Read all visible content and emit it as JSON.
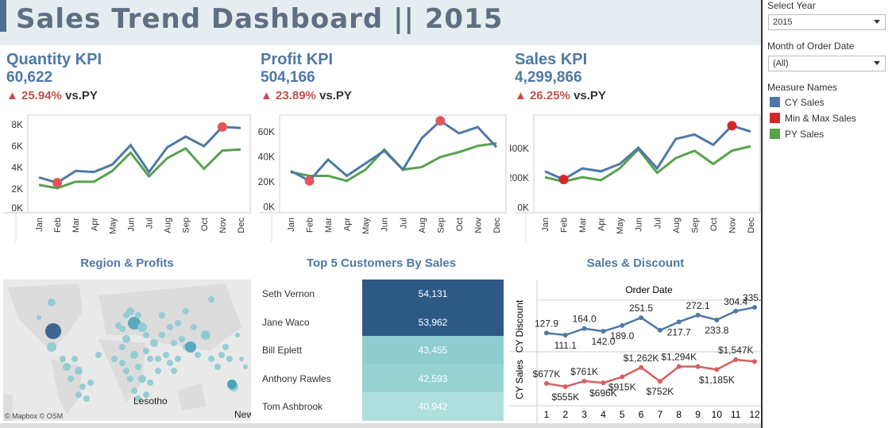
{
  "header": {
    "title": "Sales Trend Dashboard || 2015"
  },
  "kpis": [
    {
      "title": "Quantity KPI",
      "value": "60,622",
      "change": "▲ 25.94%",
      "vs": "vs.PY",
      "chart": {
        "type": "line",
        "categories": [
          "Jan",
          "Feb",
          "Mar",
          "Apr",
          "May",
          "Jun",
          "Jul",
          "Aug",
          "Sep",
          "Oct",
          "Nov",
          "Dec"
        ],
        "yticks": [
          "0K",
          "2K",
          "4K",
          "6K",
          "8K"
        ],
        "ytick_values": [
          0,
          2000,
          4000,
          6000,
          8000
        ],
        "ylim": [
          0,
          8500
        ],
        "series": [
          {
            "name": "CY Sales",
            "values": [
              3000,
              2500,
              3600,
              3500,
              4200,
              6000,
              3500,
              5800,
              6800,
              5900,
              7700,
              7600
            ]
          },
          {
            "name": "PY Sales",
            "values": [
              2300,
              2000,
              2600,
              2600,
              3600,
              5300,
              3100,
              4800,
              5700,
              3800,
              5500,
              5600
            ]
          }
        ],
        "min_max": [
          {
            "month": "Feb",
            "value": 2500
          },
          {
            "month": "Nov",
            "value": 7700
          }
        ]
      }
    },
    {
      "title": "Profit KPI",
      "value": "504,166",
      "change": "▲ 23.89%",
      "vs": "vs.PY",
      "chart": {
        "type": "line",
        "categories": [
          "Jan",
          "Feb",
          "Mar",
          "Apr",
          "May",
          "Jun",
          "Jul",
          "Aug",
          "Sep",
          "Oct",
          "Nov",
          "Dec"
        ],
        "yticks": [
          "0K",
          "20K",
          "40K",
          "60K"
        ],
        "ytick_values": [
          0,
          20000,
          40000,
          60000
        ],
        "ylim": [
          -3000,
          70000
        ],
        "series": [
          {
            "name": "CY Sales",
            "values": [
              28000,
              20000,
              37000,
              24000,
              34000,
              44000,
              29000,
              54000,
              68000,
              58000,
              63000,
              47000
            ]
          },
          {
            "name": "PY Sales",
            "values": [
              27000,
              24000,
              24000,
              20000,
              29000,
              45000,
              29000,
              31000,
              39000,
              43000,
              48000,
              50000
            ]
          }
        ],
        "min_max": [
          {
            "month": "Feb",
            "value": 20000
          },
          {
            "month": "Sep",
            "value": 68000
          }
        ]
      }
    },
    {
      "title": "Sales KPI",
      "value": "4,299,866",
      "change": "▲ 26.25%",
      "vs": "vs.PY",
      "chart": {
        "type": "line",
        "categories": [
          "Jan",
          "Feb",
          "Mar",
          "Apr",
          "May",
          "Jun",
          "Jul",
          "Aug",
          "Sep",
          "Oct",
          "Nov",
          "Dec"
        ],
        "yticks": [
          "0K",
          "200K",
          "400K"
        ],
        "ytick_values": [
          0,
          200000,
          400000
        ],
        "ylim": [
          -20000,
          600000
        ],
        "series": [
          {
            "name": "CY Sales",
            "values": [
              240000,
              185000,
              260000,
              240000,
              290000,
              400000,
              260000,
              460000,
              490000,
              420000,
              550000,
              510000
            ]
          },
          {
            "name": "PY Sales",
            "values": [
              200000,
              170000,
              200000,
              180000,
              260000,
              390000,
              230000,
              330000,
              380000,
              290000,
              380000,
              410000
            ]
          }
        ],
        "min_max": [
          {
            "month": "Feb",
            "value": 185000
          },
          {
            "month": "Nov",
            "value": 550000
          }
        ]
      }
    }
  ],
  "colors": {
    "cy": "#4e79a7",
    "py": "#59a14f",
    "minmax": "#e15759",
    "title": "#4e79a7",
    "table_dark": "#2e5986",
    "table_light": "#8ecdd0"
  },
  "region": {
    "title": "Region & Profits",
    "label": "Lesotho",
    "label2": "New",
    "attribution": "© Mapbox © OSM"
  },
  "customers": {
    "title": "Top 5 Customers By Sales",
    "rows": [
      {
        "name": "Seth Vernon",
        "value": "54,131",
        "color": "#2e5986"
      },
      {
        "name": "Jane Waco",
        "value": "53,962",
        "color": "#2e5986"
      },
      {
        "name": "Bill Eplett",
        "value": "43,455",
        "color": "#8ecdd0"
      },
      {
        "name": "Anthony Rawles",
        "value": "42,593",
        "color": "#97d2d3"
      },
      {
        "name": "Tom Ashbrook",
        "value": "40,942",
        "color": "#afdfdc"
      }
    ]
  },
  "sales_discount": {
    "title": "Sales & Discount",
    "header": "Order Date",
    "row1_label": "CY Discount",
    "row2_label": "CY Sales",
    "chart_data": {
      "type": "line",
      "x": [
        1,
        2,
        3,
        4,
        5,
        6,
        7,
        8,
        9,
        10,
        11,
        12
      ],
      "series": [
        {
          "name": "CY Discount",
          "values": [
            127.9,
            111.1,
            164.0,
            142.0,
            189.0,
            251.5,
            150,
            217.7,
            272.1,
            233.8,
            304.4,
            335.1
          ],
          "labels": [
            "127.9",
            "111.1",
            "164.0",
            "142.0",
            "189.0",
            "251.5",
            "",
            "217.7",
            "272.1",
            "233.8",
            "304.4",
            "335.1"
          ]
        },
        {
          "name": "CY Sales",
          "values": [
            677,
            555,
            761,
            696,
            915,
            1262,
            752,
            1294,
            1294,
            1185,
            1547,
            1480
          ],
          "labels": [
            "$677K",
            "$555K",
            "$761K",
            "$696K",
            "$915K",
            "$1,262K",
            "$752K",
            "$1,294K",
            "",
            "$1,185K",
            "$1,547K",
            ""
          ]
        }
      ]
    }
  },
  "filters": {
    "year_label": "Select Year",
    "year_value": "2015",
    "month_label": "Month of Order Date",
    "month_value": "(All)"
  },
  "legend": {
    "title": "Measure Names",
    "items": [
      {
        "label": "CY Sales",
        "color": "#4e79a7"
      },
      {
        "label": "Min & Max Sales",
        "color": "#d62728"
      },
      {
        "label": "PY Sales",
        "color": "#59a14f"
      }
    ]
  }
}
